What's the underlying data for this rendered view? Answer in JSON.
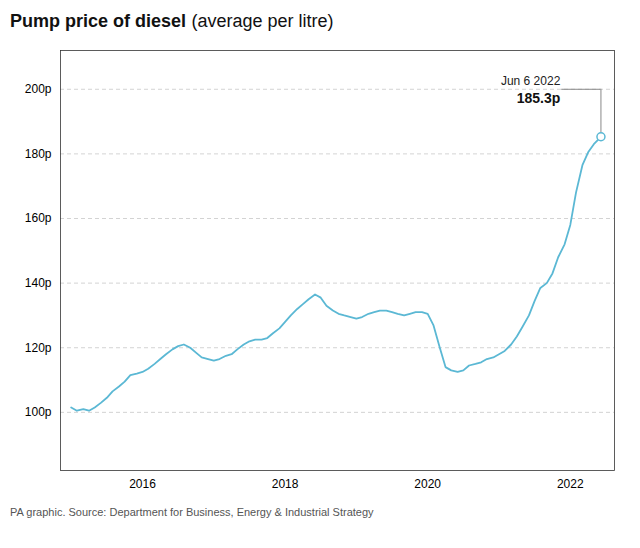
{
  "chart_data": {
    "type": "line",
    "title": "Pump price of diesel",
    "subtitle": "(average per litre)",
    "caption": "PA graphic. Source: Department for Business, Energy & Industrial Strategy",
    "color": "#5BB8D4",
    "grid": true,
    "x": [
      2015.0,
      2015.08,
      2015.17,
      2015.25,
      2015.33,
      2015.42,
      2015.5,
      2015.58,
      2015.67,
      2015.75,
      2015.83,
      2015.92,
      2016.0,
      2016.08,
      2016.17,
      2016.25,
      2016.33,
      2016.42,
      2016.5,
      2016.58,
      2016.67,
      2016.75,
      2016.83,
      2016.92,
      2017.0,
      2017.08,
      2017.17,
      2017.25,
      2017.33,
      2017.42,
      2017.5,
      2017.58,
      2017.67,
      2017.75,
      2017.83,
      2017.92,
      2018.0,
      2018.08,
      2018.17,
      2018.25,
      2018.33,
      2018.42,
      2018.5,
      2018.58,
      2018.67,
      2018.75,
      2018.83,
      2018.92,
      2019.0,
      2019.08,
      2019.17,
      2019.25,
      2019.33,
      2019.42,
      2019.5,
      2019.58,
      2019.67,
      2019.75,
      2019.83,
      2019.92,
      2020.0,
      2020.08,
      2020.17,
      2020.25,
      2020.33,
      2020.42,
      2020.5,
      2020.58,
      2020.67,
      2020.75,
      2020.83,
      2020.92,
      2021.0,
      2021.08,
      2021.17,
      2021.25,
      2021.33,
      2021.42,
      2021.5,
      2021.58,
      2021.67,
      2021.75,
      2021.83,
      2021.92,
      2022.0,
      2022.08,
      2022.17,
      2022.25,
      2022.33,
      2022.43
    ],
    "values": [
      101.5,
      100.5,
      101.0,
      100.5,
      101.5,
      103.0,
      104.5,
      106.5,
      108.0,
      109.5,
      111.5,
      112.0,
      112.5,
      113.5,
      115.0,
      116.5,
      118.0,
      119.5,
      120.5,
      121.0,
      120.0,
      118.5,
      117.0,
      116.5,
      116.0,
      116.5,
      117.5,
      118.0,
      119.5,
      121.0,
      122.0,
      122.5,
      122.5,
      123.0,
      124.5,
      126.0,
      128.0,
      130.0,
      132.0,
      133.5,
      135.0,
      136.5,
      135.5,
      133.0,
      131.5,
      130.5,
      130.0,
      129.5,
      129.0,
      129.5,
      130.5,
      131.0,
      131.5,
      131.5,
      131.0,
      130.5,
      130.0,
      130.5,
      131.0,
      131.0,
      130.5,
      127.0,
      120.0,
      114.0,
      113.0,
      112.5,
      113.0,
      114.5,
      115.0,
      115.5,
      116.5,
      117.0,
      118.0,
      119.0,
      121.0,
      123.5,
      126.5,
      130.0,
      134.5,
      138.5,
      140.0,
      143.0,
      148.0,
      152.0,
      158.0,
      168.0,
      176.5,
      180.5,
      183.0,
      185.3
    ],
    "xlim": [
      2014.85,
      2022.62
    ],
    "xticks": [
      2016,
      2018,
      2020,
      2022
    ],
    "ylim": [
      82,
      212
    ],
    "yticks": [
      {
        "value": 100,
        "label": "100p"
      },
      {
        "value": 120,
        "label": "120p"
      },
      {
        "value": 140,
        "label": "140p"
      },
      {
        "value": 160,
        "label": "160p"
      },
      {
        "value": 180,
        "label": "180p"
      },
      {
        "value": 200,
        "label": "200p"
      }
    ],
    "annotations": [
      {
        "x": 2022.43,
        "y": 185.3,
        "line_y": 200,
        "date": "Jun 6 2022",
        "label": "185.3p"
      }
    ]
  }
}
